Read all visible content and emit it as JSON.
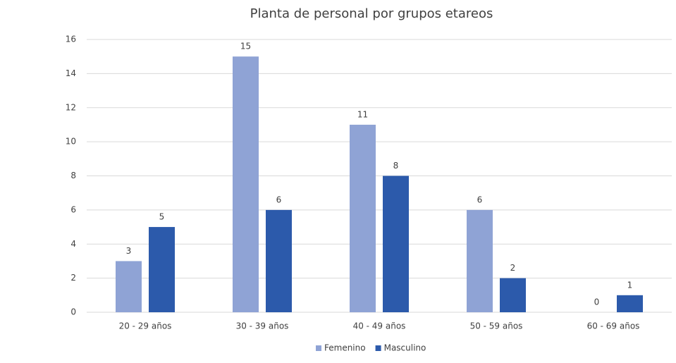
{
  "chart_data": {
    "type": "bar",
    "title": "Planta de personal por grupos etareos",
    "categories": [
      "20 - 29 años",
      "30 - 39 años",
      "40 - 49 años",
      "50 - 59 años",
      "60 - 69 años"
    ],
    "series": [
      {
        "name": "Femenino",
        "color": "#8fa3d5",
        "values": [
          3,
          15,
          11,
          6,
          0
        ]
      },
      {
        "name": "Masculino",
        "color": "#2c5aab",
        "values": [
          5,
          6,
          8,
          2,
          1
        ]
      }
    ],
    "ylim": [
      0,
      16
    ],
    "yticks": [
      0,
      2,
      4,
      6,
      8,
      10,
      12,
      14,
      16
    ],
    "grid": true,
    "legend": "bottom",
    "data_labels": true
  }
}
